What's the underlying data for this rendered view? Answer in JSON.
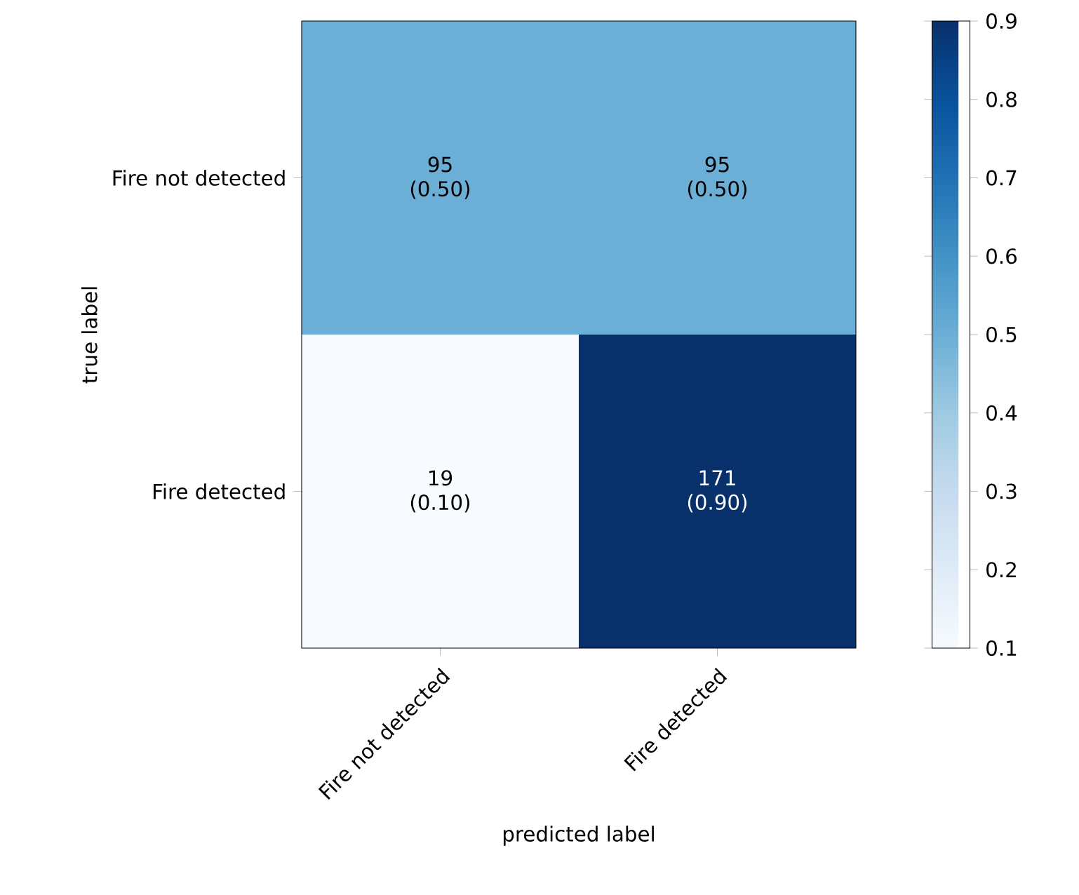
{
  "chart_data": {
    "type": "heatmap",
    "xlabel": "predicted label",
    "ylabel": "true label",
    "categories": [
      "Fire not detected",
      "Fire detected"
    ],
    "y_categories": [
      "Fire not detected",
      "Fire detected"
    ],
    "cells": [
      [
        0.5,
        0.5
      ],
      [
        0.1,
        0.9
      ]
    ],
    "cell_labels": [
      [
        "95 (0.50)",
        "95 (0.50)"
      ],
      [
        "19 (0.10)",
        "171 (0.90)"
      ]
    ],
    "clim": [
      0.1,
      0.9
    ],
    "cticks": [
      0.1,
      0.2,
      0.3,
      0.4,
      0.5,
      0.6,
      0.7,
      0.8,
      0.9
    ]
  }
}
